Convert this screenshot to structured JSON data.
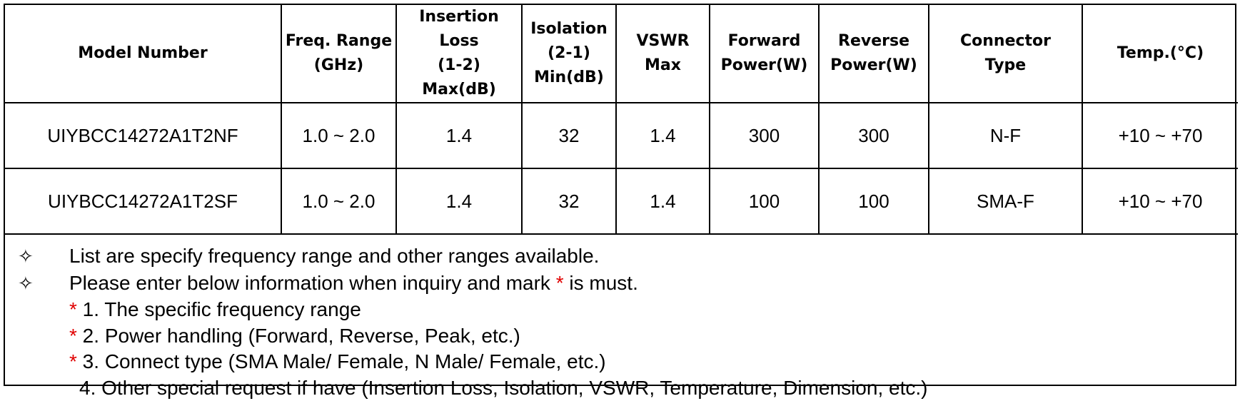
{
  "table": {
    "headers": [
      "Model Number",
      "Freq. Range\n(GHz)",
      "Insertion Loss\n(1-2)\nMax(dB)",
      "Isolation\n(2-1)\nMin(dB)",
      "VSWR\nMax",
      "Forward\nPower(W)",
      "Reverse\nPower(W)",
      "Connector\nType",
      "Temp.(°C)"
    ],
    "rows": [
      [
        "UIYBCC14272A1T2NF",
        "1.0 ~ 2.0",
        "1.4",
        "32",
        "1.4",
        "300",
        "300",
        "N-F",
        "+10 ~ +70"
      ],
      [
        "UIYBCC14272A1T2SF",
        "1.0 ~ 2.0",
        "1.4",
        "32",
        "1.4",
        "100",
        "100",
        "SMA-F",
        "+10 ~ +70"
      ]
    ]
  },
  "notes": {
    "bullet_glyph": "✧",
    "line1": "List are specify frequency range and other ranges available.",
    "line2_pre": "Please enter below information when inquiry and mark ",
    "star": "*",
    "line2_post": " is must.",
    "items": [
      " 1. The specific frequency range",
      " 2. Power handling (Forward, Reverse, Peak, etc.)",
      " 3. Connect type (SMA Male/ Female, N Male/ Female, etc.)"
    ],
    "item4": "4. Other special request if have (Insertion Loss, Isolation, VSWR, Temperature, Dimension, etc.)"
  }
}
